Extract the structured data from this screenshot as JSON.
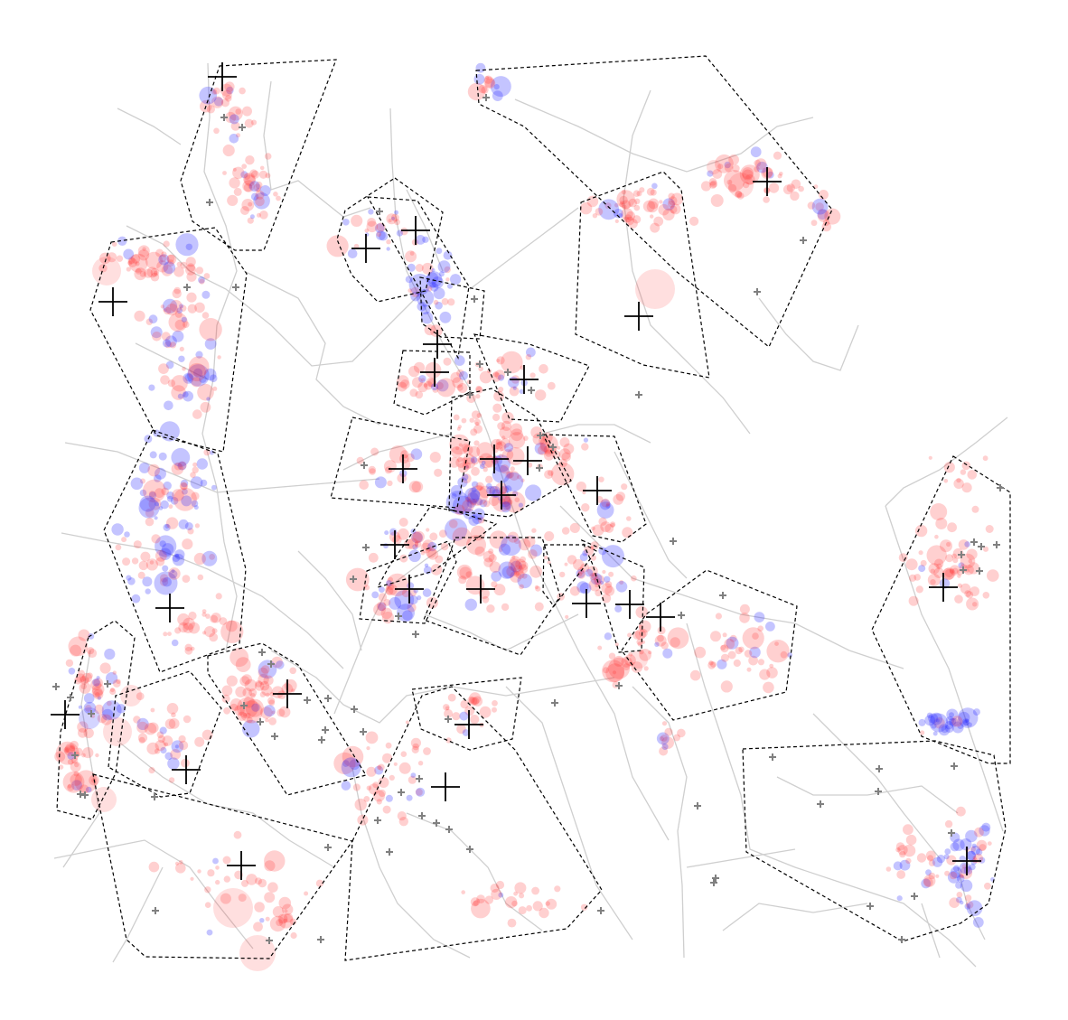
{
  "map": {
    "colors": {
      "background": "#ffffff",
      "road": "#cfcfcf",
      "zone_boundary": "#000000",
      "zone_center_marker": "#000000",
      "station_marker": "#808080",
      "point_red": "#ff2a2a",
      "point_blue": "#2a2aff"
    },
    "icons": {
      "zone_center": "large-black-cross-icon",
      "station": "small-gray-cross-icon"
    },
    "legend": "none",
    "zone_count": 27,
    "text": ""
  }
}
